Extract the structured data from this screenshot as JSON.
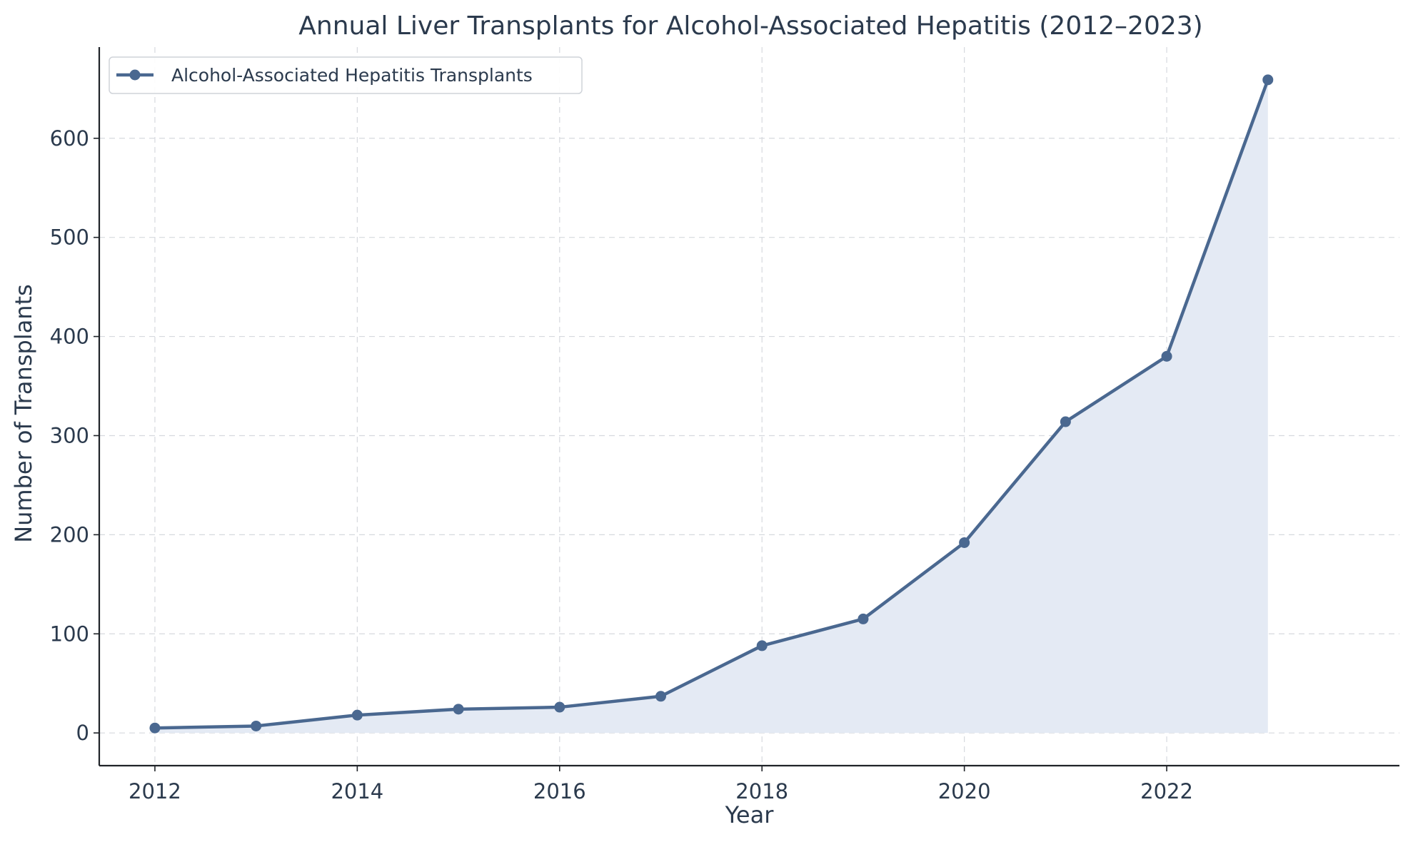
{
  "chart_data": {
    "type": "line",
    "title": "Annual Liver Transplants for Alcohol-Associated Hepatitis (2012–2023)",
    "xlabel": "Year",
    "ylabel": "Number of Transplants",
    "x": [
      2012,
      2013,
      2014,
      2015,
      2016,
      2017,
      2018,
      2019,
      2020,
      2021,
      2022,
      2023
    ],
    "series": [
      {
        "name": "Alcohol-Associated Hepatitis Transplants",
        "values": [
          5,
          7,
          18,
          24,
          26,
          37,
          88,
          115,
          192,
          314,
          380,
          659
        ],
        "color": "#4a6890",
        "fill": "#e4eaf4",
        "marker": "circle",
        "area_fill": true
      }
    ],
    "xlim": [
      2011.45,
      2024.3
    ],
    "ylim": [
      -33,
      692
    ],
    "xticks": [
      "2012",
      "2014",
      "2016",
      "2018",
      "2020",
      "2022"
    ],
    "yticks": [
      "0",
      "100",
      "200",
      "300",
      "400",
      "500",
      "600"
    ],
    "grid": true,
    "legend_position": "top-left"
  }
}
